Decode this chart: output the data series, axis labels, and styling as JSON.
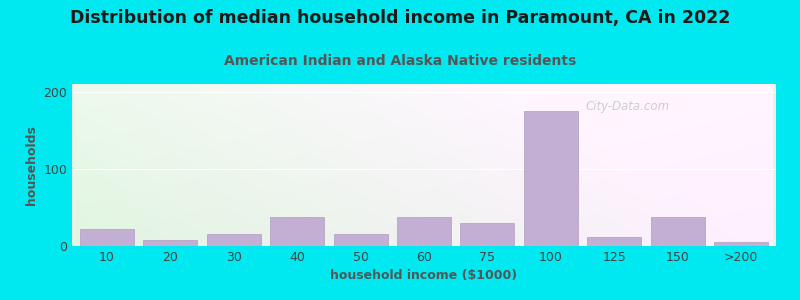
{
  "title": "Distribution of median household income in Paramount, CA in 2022",
  "subtitle": "American Indian and Alaska Native residents",
  "xlabel": "household income ($1000)",
  "ylabel": "households",
  "tick_labels": [
    "10",
    "20",
    "30",
    "40",
    "50",
    "60",
    "75",
    "100",
    "125",
    "150",
    ">200"
  ],
  "bar_heights": [
    22,
    8,
    15,
    38,
    15,
    38,
    30,
    175,
    12,
    38,
    5
  ],
  "bar_color": "#c4afd4",
  "bar_edge_color": "#b09cc0",
  "bg_gradient_top": "#e8f5e0",
  "bg_gradient_bottom": "#f0fae8",
  "bg_right": "#eaf5f0",
  "outer_bg": "#00e8f0",
  "title_color": "#1a1a1a",
  "subtitle_color": "#555555",
  "axis_label_color": "#555555",
  "tick_color": "#444444",
  "ylim": [
    0,
    210
  ],
  "yticks": [
    0,
    100,
    200
  ],
  "watermark": "City-Data.com",
  "title_fontsize": 12.5,
  "subtitle_fontsize": 10,
  "label_fontsize": 9,
  "tick_fontsize": 9
}
